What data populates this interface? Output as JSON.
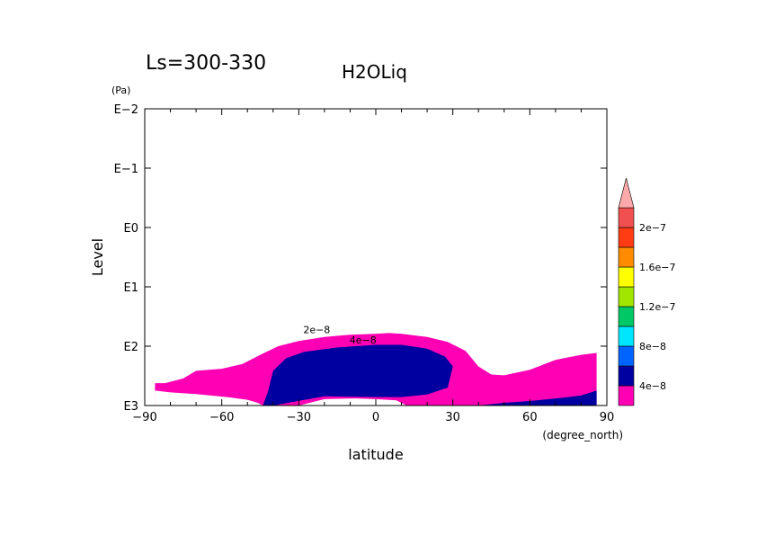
{
  "chart_data": {
    "type": "contour",
    "title": "H2OLiq",
    "subtitle": "Ls=300-330",
    "xlabel": "latitude",
    "xunit": "(degree_north)",
    "ylabel": "Level",
    "yunit": "(Pa)",
    "xlim": [
      -90,
      90
    ],
    "ylim": [
      1000,
      0.01
    ],
    "yscale": "log",
    "xticks": [
      -90,
      -60,
      -30,
      0,
      30,
      60,
      90
    ],
    "xtick_labels": [
      "−90",
      "−60",
      "−30",
      "0",
      "30",
      "60",
      "90"
    ],
    "yticks": [
      0.01,
      0.1,
      1,
      10,
      100,
      1000
    ],
    "ytick_labels": [
      "E−2",
      "E−1",
      "E0",
      "E1",
      "E2",
      "E3"
    ],
    "contour_labels": [
      {
        "text": "2e−8",
        "lat": -23,
        "level": 60
      },
      {
        "text": "4e−8",
        "lat": -5,
        "level": 90
      }
    ],
    "regions": [
      {
        "name": "2e-8 to 4e-8",
        "color": "#ff00b4",
        "boundary": [
          [
            -86,
            1000
          ],
          [
            -86,
            420
          ],
          [
            -82,
            420
          ],
          [
            -75,
            350
          ],
          [
            -70,
            260
          ],
          [
            -60,
            240
          ],
          [
            -52,
            200
          ],
          [
            -45,
            140
          ],
          [
            -38,
            100
          ],
          [
            -30,
            82
          ],
          [
            -20,
            70
          ],
          [
            -10,
            64
          ],
          [
            0,
            62
          ],
          [
            5,
            60
          ],
          [
            10,
            62
          ],
          [
            20,
            70
          ],
          [
            28,
            85
          ],
          [
            35,
            120
          ],
          [
            40,
            220
          ],
          [
            45,
            300
          ],
          [
            50,
            310
          ],
          [
            60,
            250
          ],
          [
            70,
            170
          ],
          [
            80,
            140
          ],
          [
            86,
            130
          ],
          [
            86,
            1000
          ]
        ]
      },
      {
        "name": "4e-8 to 8e-8",
        "color": "#0000a0",
        "boundary": [
          [
            -44,
            1000
          ],
          [
            -42,
            580
          ],
          [
            -40,
            260
          ],
          [
            -35,
            160
          ],
          [
            -28,
            125
          ],
          [
            -15,
            105
          ],
          [
            0,
            95
          ],
          [
            10,
            95
          ],
          [
            20,
            110
          ],
          [
            27,
            150
          ],
          [
            30,
            220
          ],
          [
            28,
            500
          ],
          [
            20,
            650
          ],
          [
            10,
            720
          ],
          [
            0,
            720
          ],
          [
            -20,
            700
          ],
          [
            -40,
            1000
          ]
        ]
      },
      {
        "name": "4e-8 to 8e-8 (surface)",
        "color": "#0000a0",
        "boundary": [
          [
            40,
            1000
          ],
          [
            50,
            900
          ],
          [
            60,
            840
          ],
          [
            70,
            760
          ],
          [
            80,
            680
          ],
          [
            86,
            560
          ],
          [
            86,
            1000
          ]
        ]
      }
    ],
    "masked_regions": [
      {
        "name": "below-surface",
        "color": "#ffffff",
        "boundary": [
          [
            -90,
            1000
          ],
          [
            -86,
            1000
          ],
          [
            -86,
            560
          ],
          [
            -80,
            600
          ],
          [
            -70,
            640
          ],
          [
            -58,
            720
          ],
          [
            -50,
            800
          ],
          [
            -46,
            900
          ],
          [
            -44,
            1000
          ],
          [
            -30,
            1000
          ],
          [
            -20,
            780
          ],
          [
            -8,
            760
          ],
          [
            0,
            780
          ],
          [
            8,
            820
          ],
          [
            12,
            1000
          ],
          [
            90,
            1000
          ]
        ]
      }
    ],
    "colorbar": {
      "ticks": [
        "4e−8",
        "8e−8",
        "1.2e−7",
        "1.6e−7",
        "2e−7"
      ],
      "colors": [
        "#ff00b4",
        "#0000a0",
        "#0064ff",
        "#00e6ff",
        "#00c864",
        "#a0e600",
        "#ffff00",
        "#ff8c00",
        "#ff3c14",
        "#f05050"
      ],
      "extend_color": "#ffaaaa"
    }
  }
}
